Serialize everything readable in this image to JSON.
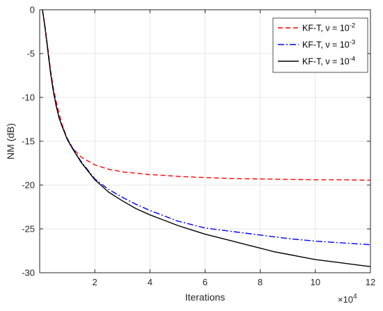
{
  "chart_data": {
    "type": "line",
    "xlabel": "Iterations",
    "ylabel": "NM (dB)",
    "x_multiplier_label": "×10",
    "x_multiplier_exp": "4",
    "xlim": [
      0,
      12
    ],
    "ylim": [
      -30,
      0
    ],
    "x_ticks": [
      2,
      4,
      6,
      8,
      10,
      12
    ],
    "y_ticks": [
      0,
      -5,
      -10,
      -15,
      -20,
      -25,
      -30
    ],
    "grid": true,
    "legend_position": "top-right",
    "series": [
      {
        "name": "KF-T, ν = 10",
        "name_exp": "-2",
        "color": "#ff0000",
        "dash": "7 4",
        "x": [
          0.1,
          0.2,
          0.3,
          0.4,
          0.5,
          0.6,
          0.7,
          0.8,
          1.0,
          1.2,
          1.5,
          2.0,
          2.5,
          3.0,
          4.0,
          5.0,
          6.0,
          7.0,
          8.0,
          9.0,
          10.0,
          11.0,
          12.0
        ],
        "y": [
          0,
          -2.0,
          -4.5,
          -7.0,
          -9.0,
          -10.5,
          -11.8,
          -13.0,
          -14.7,
          -15.8,
          -16.8,
          -17.7,
          -18.2,
          -18.5,
          -18.8,
          -19.0,
          -19.15,
          -19.25,
          -19.3,
          -19.35,
          -19.4,
          -19.4,
          -19.45
        ]
      },
      {
        "name": "KF-T, ν = 10",
        "name_exp": "-3",
        "color": "#0000ff",
        "dash": "9 3 2 3",
        "x": [
          0.1,
          0.2,
          0.3,
          0.4,
          0.5,
          0.6,
          0.7,
          0.8,
          1.0,
          1.2,
          1.5,
          2.0,
          2.5,
          3.0,
          3.5,
          4.0,
          4.5,
          5.0,
          5.5,
          6.0,
          7.0,
          8.0,
          9.0,
          10.0,
          11.0,
          12.0
        ],
        "y": [
          0,
          -2.2,
          -4.8,
          -7.3,
          -9.4,
          -11.0,
          -12.3,
          -13.2,
          -14.7,
          -15.8,
          -17.3,
          -19.3,
          -20.5,
          -21.4,
          -22.2,
          -22.9,
          -23.5,
          -24.1,
          -24.5,
          -24.9,
          -25.3,
          -25.7,
          -26.1,
          -26.4,
          -26.6,
          -26.8
        ]
      },
      {
        "name": "KF-T, ν = 10",
        "name_exp": "-4",
        "color": "#000000",
        "dash": "",
        "x": [
          0.1,
          0.2,
          0.3,
          0.4,
          0.5,
          0.6,
          0.7,
          0.8,
          1.0,
          1.2,
          1.5,
          2.0,
          2.5,
          3.0,
          3.5,
          4.0,
          4.5,
          5.0,
          5.5,
          6.0,
          6.5,
          7.0,
          7.5,
          8.0,
          8.5,
          9.0,
          9.5,
          10.0,
          10.5,
          11.0,
          11.5,
          12.0
        ],
        "y": [
          0,
          -2.2,
          -4.8,
          -7.3,
          -9.4,
          -11.0,
          -12.3,
          -13.2,
          -14.8,
          -15.9,
          -17.4,
          -19.4,
          -20.8,
          -21.8,
          -22.7,
          -23.4,
          -24.0,
          -24.6,
          -25.1,
          -25.6,
          -26.0,
          -26.4,
          -26.8,
          -27.2,
          -27.6,
          -27.9,
          -28.2,
          -28.5,
          -28.7,
          -28.9,
          -29.1,
          -29.3
        ]
      }
    ]
  }
}
